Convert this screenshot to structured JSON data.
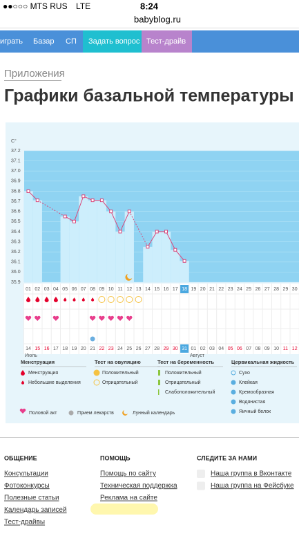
{
  "status": {
    "carrier": "●●○○○ MTS RUS",
    "network": "LTE",
    "time": "8:24",
    "url": "babyblog.ru"
  },
  "nav": [
    "играть",
    "Базар",
    "СП",
    "Задать вопрос",
    "Тест-драйв"
  ],
  "breadcrumb": "Приложения",
  "title": "Графики базальной температуры",
  "chart": {
    "unit": "C°",
    "ylim": [
      35.9,
      37.2
    ],
    "yticks": [
      35.9,
      {
        "value": 36,
        "label": "36.0"
      },
      36.1,
      36.2,
      36.3,
      36.4,
      36.5,
      36.6,
      36.7,
      36.8,
      36.9,
      {
        "value": 37,
        "label": "37.0"
      },
      37.1,
      37.2
    ],
    "days": [
      "01",
      "02",
      "03",
      "04",
      "05",
      "06",
      "07",
      "08",
      "09",
      "10",
      "11",
      "12",
      "13",
      "14",
      "15",
      "16",
      "17",
      "18",
      "19",
      "20",
      "21",
      "22",
      "23",
      "24",
      "25",
      "26",
      "27",
      "28",
      "29",
      "30"
    ],
    "temps": [
      36.8,
      36.71,
      null,
      null,
      36.55,
      36.5,
      36.75,
      36.71,
      36.71,
      36.6,
      36.4,
      36.6,
      null,
      36.25,
      36.4,
      36.4,
      36.22,
      36.11,
      null,
      null,
      null,
      null,
      null,
      null,
      null,
      null,
      null,
      null,
      null,
      null
    ],
    "dates": [
      "14",
      "15",
      "16",
      "17",
      "18",
      "19",
      "20",
      "21",
      "22",
      "23",
      "24",
      "25",
      "26",
      "27",
      "28",
      "29",
      "30",
      "31",
      "01",
      "02",
      "03",
      "04",
      "05",
      "06",
      "07",
      "08",
      "09",
      "10",
      "11",
      "12"
    ],
    "months": [
      "Июль",
      "Август"
    ],
    "legend": [
      {
        "title": "Менструация",
        "items": [
          "Менструация",
          "Небольшие выделения"
        ]
      },
      {
        "title": "Тест на овуляцию",
        "items": [
          "Положительный",
          "Отрицательный"
        ]
      },
      {
        "title": "Тест на беременность",
        "items": [
          "Положительный",
          "Отрицательный",
          "Слабоположительный"
        ]
      },
      {
        "title": "Цервикальная жидкость",
        "items": [
          "Сухо",
          "Клейкая",
          "Кремообразная",
          "Водянистая",
          "Яичный белок"
        ]
      }
    ],
    "legend_bottom": [
      "Половой акт",
      "Прием лекарств",
      "Лунный календарь"
    ]
  },
  "footer": [
    {
      "title": "ОБЩЕНИЕ",
      "links": [
        "Консультации",
        "Фотоконкурсы",
        "Полезные статьи",
        "Календарь записей",
        "Тест-драйвы"
      ]
    },
    {
      "title": "ПОМОЩЬ",
      "links": [
        "Помощь по сайту",
        "Техническая поддержка",
        "Реклама на сайте"
      ]
    },
    {
      "title": "СЛЕДИТЕ ЗА НАМИ",
      "links": [
        "Наша группа в Вконтакте",
        "Наша группа на Фейсбуке"
      ]
    }
  ]
}
